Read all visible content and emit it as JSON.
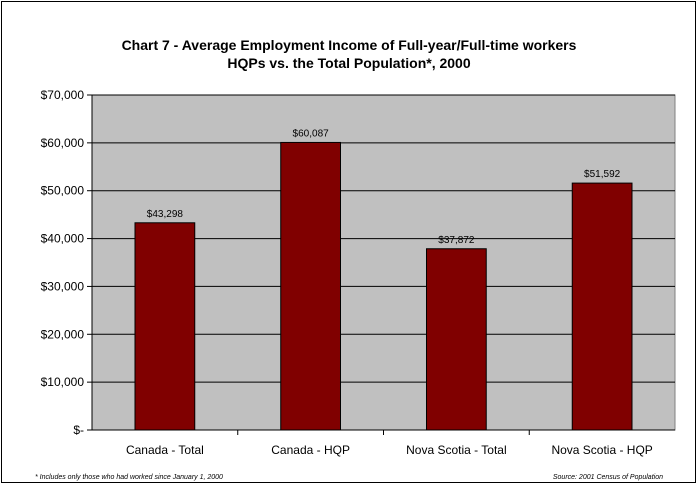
{
  "title_line1": "Chart 7 - Average Employment Income of Full-year/Full-time workers",
  "title_line2": "HQPs vs. the Total Population*, 2000",
  "footnote": "* Includes only those who had worked since January 1, 2000",
  "source": "Source:  2001 Census of Population",
  "colors": {
    "bar": "#800000",
    "plot_background": "#c0c0c0",
    "gridline": "#000000"
  },
  "chart_data": {
    "type": "bar",
    "title": "Chart 7 - Average Employment Income of Full-year/Full-time workers HQPs vs. the Total Population*, 2000",
    "categories": [
      "Canada - Total",
      "Canada - HQP",
      "Nova Scotia - Total",
      "Nova Scotia - HQP"
    ],
    "values": [
      43298,
      60087,
      37872,
      51592
    ],
    "data_labels": [
      "$43,298",
      "$60,087",
      "$37,872",
      "$51,592"
    ],
    "ylim": [
      0,
      70000
    ],
    "yticks": [
      0,
      10000,
      20000,
      30000,
      40000,
      50000,
      60000,
      70000
    ],
    "ytick_labels": [
      "$-",
      "$10,000",
      "$20,000",
      "$30,000",
      "$40,000",
      "$50,000",
      "$60,000",
      "$70,000"
    ],
    "xlabel": "",
    "ylabel": "",
    "grid": true,
    "legend": "none"
  }
}
